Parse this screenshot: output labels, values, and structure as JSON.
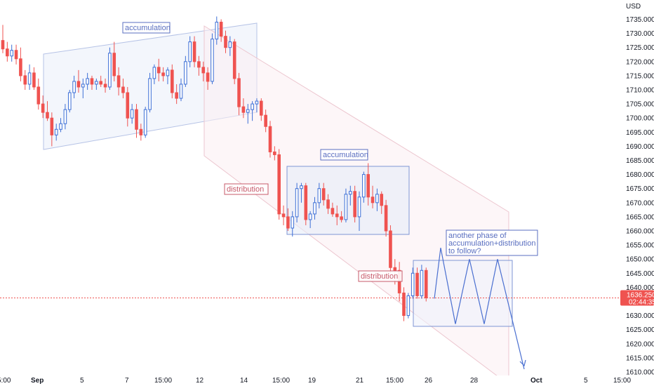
{
  "chart_data": {
    "type": "candlestick",
    "currency": "USD",
    "y_ticks": [
      1610,
      1615,
      1620,
      1625,
      1630,
      1635,
      1640,
      1645,
      1650,
      1655,
      1660,
      1665,
      1670,
      1675,
      1680,
      1685,
      1690,
      1695,
      1700,
      1705,
      1710,
      1715,
      1720,
      1725,
      1730,
      1735
    ],
    "y_tick_labels": [
      "1610.000",
      "1615.000",
      "1620.000",
      "1625.000",
      "1630.000",
      "1635.000",
      "1640.000",
      "1645.000",
      "1650.000",
      "1655.000",
      "1660.000",
      "1665.000",
      "1670.000",
      "1675.000",
      "1680.000",
      "1685.000",
      "1690.000",
      "1695.000",
      "1700.000",
      "1705.000",
      "1710.000",
      "1715.000",
      "1720.000",
      "1725.000",
      "1730.000",
      "1735.000"
    ],
    "ylim": [
      1609,
      1738
    ],
    "x_tick_labels": [
      "5:00",
      "Sep",
      "5",
      "7",
      "15:00",
      "12",
      "14",
      "15:00",
      "19",
      "21",
      "15:00",
      "26",
      "28",
      "Oct",
      "5",
      "15:00"
    ],
    "current_price": "1636.250",
    "countdown": "02:44:35",
    "colors": {
      "up": "#3d6fd6",
      "down": "#ef5350",
      "annotation_blue": "#5a6fc0",
      "annotation_red": "#c75a6a",
      "price_line": "#ef5350"
    },
    "candles": [
      {
        "o": 1727.5,
        "h": 1733,
        "l": 1723,
        "c": 1724.5
      },
      {
        "o": 1724.5,
        "h": 1727,
        "l": 1720,
        "c": 1722
      },
      {
        "o": 1722,
        "h": 1726,
        "l": 1720,
        "c": 1724
      },
      {
        "o": 1724,
        "h": 1726,
        "l": 1719,
        "c": 1721
      },
      {
        "o": 1721,
        "h": 1725,
        "l": 1713,
        "c": 1715
      },
      {
        "o": 1715,
        "h": 1717,
        "l": 1710,
        "c": 1712
      },
      {
        "o": 1712,
        "h": 1719,
        "l": 1710,
        "c": 1716
      },
      {
        "o": 1716,
        "h": 1718,
        "l": 1710,
        "c": 1711
      },
      {
        "o": 1711,
        "h": 1714,
        "l": 1703,
        "c": 1705
      },
      {
        "o": 1705,
        "h": 1708,
        "l": 1700,
        "c": 1702
      },
      {
        "o": 1702,
        "h": 1706,
        "l": 1699,
        "c": 1700
      },
      {
        "o": 1700,
        "h": 1702,
        "l": 1690,
        "c": 1694
      },
      {
        "o": 1694,
        "h": 1698,
        "l": 1692,
        "c": 1696
      },
      {
        "o": 1696,
        "h": 1700,
        "l": 1695,
        "c": 1698
      },
      {
        "o": 1698,
        "h": 1705,
        "l": 1696,
        "c": 1703
      },
      {
        "o": 1703,
        "h": 1710,
        "l": 1702,
        "c": 1709
      },
      {
        "o": 1709,
        "h": 1715,
        "l": 1707,
        "c": 1713
      },
      {
        "o": 1713,
        "h": 1717,
        "l": 1709,
        "c": 1711
      },
      {
        "o": 1711,
        "h": 1714,
        "l": 1707,
        "c": 1712
      },
      {
        "o": 1712,
        "h": 1716,
        "l": 1710,
        "c": 1714
      },
      {
        "o": 1714,
        "h": 1715,
        "l": 1710,
        "c": 1712
      },
      {
        "o": 1712,
        "h": 1714,
        "l": 1710,
        "c": 1713
      },
      {
        "o": 1713,
        "h": 1715,
        "l": 1711,
        "c": 1712
      },
      {
        "o": 1712,
        "h": 1714,
        "l": 1709,
        "c": 1711
      },
      {
        "o": 1711,
        "h": 1725,
        "l": 1710,
        "c": 1723
      },
      {
        "o": 1723,
        "h": 1727,
        "l": 1713,
        "c": 1715
      },
      {
        "o": 1715,
        "h": 1718,
        "l": 1708,
        "c": 1711
      },
      {
        "o": 1711,
        "h": 1714,
        "l": 1707,
        "c": 1709
      },
      {
        "o": 1709,
        "h": 1711,
        "l": 1697,
        "c": 1700
      },
      {
        "o": 1700,
        "h": 1705,
        "l": 1698,
        "c": 1703
      },
      {
        "o": 1703,
        "h": 1705,
        "l": 1693,
        "c": 1696
      },
      {
        "o": 1696,
        "h": 1698,
        "l": 1692,
        "c": 1694
      },
      {
        "o": 1694,
        "h": 1704,
        "l": 1693,
        "c": 1703
      },
      {
        "o": 1703,
        "h": 1716,
        "l": 1702,
        "c": 1714
      },
      {
        "o": 1714,
        "h": 1719,
        "l": 1712,
        "c": 1718
      },
      {
        "o": 1718,
        "h": 1721,
        "l": 1713,
        "c": 1716
      },
      {
        "o": 1716,
        "h": 1718,
        "l": 1713,
        "c": 1715
      },
      {
        "o": 1715,
        "h": 1718,
        "l": 1712,
        "c": 1717
      },
      {
        "o": 1717,
        "h": 1719,
        "l": 1707,
        "c": 1709
      },
      {
        "o": 1709,
        "h": 1712,
        "l": 1705,
        "c": 1707
      },
      {
        "o": 1707,
        "h": 1714,
        "l": 1706,
        "c": 1712
      },
      {
        "o": 1712,
        "h": 1722,
        "l": 1711,
        "c": 1720
      },
      {
        "o": 1720,
        "h": 1729,
        "l": 1718,
        "c": 1727
      },
      {
        "o": 1727,
        "h": 1729,
        "l": 1718,
        "c": 1720
      },
      {
        "o": 1720,
        "h": 1722,
        "l": 1715,
        "c": 1718
      },
      {
        "o": 1718,
        "h": 1720,
        "l": 1713,
        "c": 1716
      },
      {
        "o": 1716,
        "h": 1718,
        "l": 1710,
        "c": 1713
      },
      {
        "o": 1713,
        "h": 1730,
        "l": 1712,
        "c": 1728
      },
      {
        "o": 1728,
        "h": 1736,
        "l": 1726,
        "c": 1734
      },
      {
        "o": 1734,
        "h": 1735,
        "l": 1727,
        "c": 1729
      },
      {
        "o": 1729,
        "h": 1731,
        "l": 1723,
        "c": 1725
      },
      {
        "o": 1725,
        "h": 1729,
        "l": 1722,
        "c": 1727
      },
      {
        "o": 1727,
        "h": 1728,
        "l": 1712,
        "c": 1714
      },
      {
        "o": 1714,
        "h": 1716,
        "l": 1701,
        "c": 1704
      },
      {
        "o": 1704,
        "h": 1707,
        "l": 1700,
        "c": 1702
      },
      {
        "o": 1702,
        "h": 1705,
        "l": 1698,
        "c": 1703
      },
      {
        "o": 1703,
        "h": 1706,
        "l": 1699,
        "c": 1705
      },
      {
        "o": 1705,
        "h": 1707,
        "l": 1702,
        "c": 1706
      },
      {
        "o": 1706,
        "h": 1707,
        "l": 1699,
        "c": 1701
      },
      {
        "o": 1701,
        "h": 1703,
        "l": 1695,
        "c": 1697
      },
      {
        "o": 1697,
        "h": 1699,
        "l": 1686,
        "c": 1688
      },
      {
        "o": 1688,
        "h": 1690,
        "l": 1685,
        "c": 1687
      },
      {
        "o": 1687,
        "h": 1689,
        "l": 1664,
        "c": 1666
      },
      {
        "o": 1666,
        "h": 1669,
        "l": 1662,
        "c": 1665
      },
      {
        "o": 1665,
        "h": 1668,
        "l": 1660,
        "c": 1661
      },
      {
        "o": 1661,
        "h": 1667,
        "l": 1658,
        "c": 1665
      },
      {
        "o": 1665,
        "h": 1677,
        "l": 1663,
        "c": 1675
      },
      {
        "o": 1675,
        "h": 1677,
        "l": 1670,
        "c": 1676
      },
      {
        "o": 1676,
        "h": 1677,
        "l": 1662,
        "c": 1664
      },
      {
        "o": 1664,
        "h": 1667,
        "l": 1661,
        "c": 1666
      },
      {
        "o": 1666,
        "h": 1672,
        "l": 1664,
        "c": 1670
      },
      {
        "o": 1670,
        "h": 1677,
        "l": 1668,
        "c": 1675
      },
      {
        "o": 1675,
        "h": 1677,
        "l": 1669,
        "c": 1671
      },
      {
        "o": 1671,
        "h": 1673,
        "l": 1666,
        "c": 1668
      },
      {
        "o": 1668,
        "h": 1670,
        "l": 1665,
        "c": 1666
      },
      {
        "o": 1666,
        "h": 1669,
        "l": 1662,
        "c": 1665
      },
      {
        "o": 1665,
        "h": 1667,
        "l": 1663,
        "c": 1664
      },
      {
        "o": 1664,
        "h": 1675,
        "l": 1663,
        "c": 1673
      },
      {
        "o": 1673,
        "h": 1676,
        "l": 1669,
        "c": 1674
      },
      {
        "o": 1674,
        "h": 1676,
        "l": 1663,
        "c": 1665
      },
      {
        "o": 1665,
        "h": 1674,
        "l": 1660,
        "c": 1672
      },
      {
        "o": 1672,
        "h": 1681,
        "l": 1670,
        "c": 1680
      },
      {
        "o": 1680,
        "h": 1684,
        "l": 1669,
        "c": 1672
      },
      {
        "o": 1672,
        "h": 1676,
        "l": 1668,
        "c": 1670
      },
      {
        "o": 1670,
        "h": 1675,
        "l": 1667,
        "c": 1673
      },
      {
        "o": 1673,
        "h": 1674,
        "l": 1666,
        "c": 1669
      },
      {
        "o": 1669,
        "h": 1671,
        "l": 1658,
        "c": 1660
      },
      {
        "o": 1660,
        "h": 1662,
        "l": 1645,
        "c": 1647
      },
      {
        "o": 1647,
        "h": 1650,
        "l": 1641,
        "c": 1646
      },
      {
        "o": 1646,
        "h": 1649,
        "l": 1635,
        "c": 1638
      },
      {
        "o": 1638,
        "h": 1640,
        "l": 1628,
        "c": 1630
      },
      {
        "o": 1630,
        "h": 1638,
        "l": 1629,
        "c": 1637
      },
      {
        "o": 1637,
        "h": 1647,
        "l": 1636,
        "c": 1645
      },
      {
        "o": 1645,
        "h": 1647,
        "l": 1636,
        "c": 1637
      },
      {
        "o": 1637,
        "h": 1648,
        "l": 1636,
        "c": 1646
      },
      {
        "o": 1646,
        "h": 1647,
        "l": 1635,
        "c": 1636.25
      }
    ],
    "annotations": [
      {
        "text": "accumulation",
        "color": "blue"
      },
      {
        "text": "distribution",
        "color": "red"
      },
      {
        "text": "accumulation",
        "color": "blue"
      },
      {
        "text": "distribution",
        "color": "red"
      },
      {
        "text": "another phase of\naccumulation+distribution\nto follow?",
        "color": "blue"
      }
    ],
    "projection_path": [
      1636,
      1654,
      1627,
      1650,
      1627,
      1650,
      1627,
      1650,
      1611
    ]
  }
}
